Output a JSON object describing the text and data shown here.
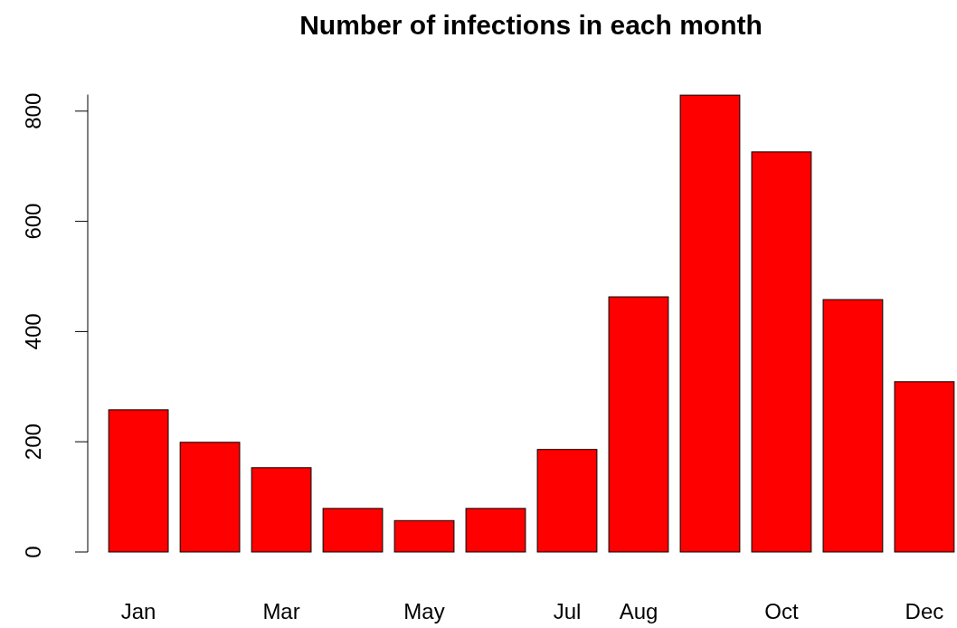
{
  "chart_data": {
    "type": "bar",
    "title": "Number of infections in each month",
    "categories": [
      "Jan",
      null,
      "Mar",
      null,
      "May",
      null,
      "Jul",
      "Aug",
      null,
      "Oct",
      null,
      "Dec"
    ],
    "values": [
      258,
      199,
      153,
      79,
      57,
      79,
      186,
      463,
      829,
      726,
      458,
      309
    ],
    "color": "#ff0000",
    "ylim": [
      0,
      830
    ],
    "yticks": [
      0,
      200,
      400,
      600,
      800
    ],
    "grid": false
  }
}
